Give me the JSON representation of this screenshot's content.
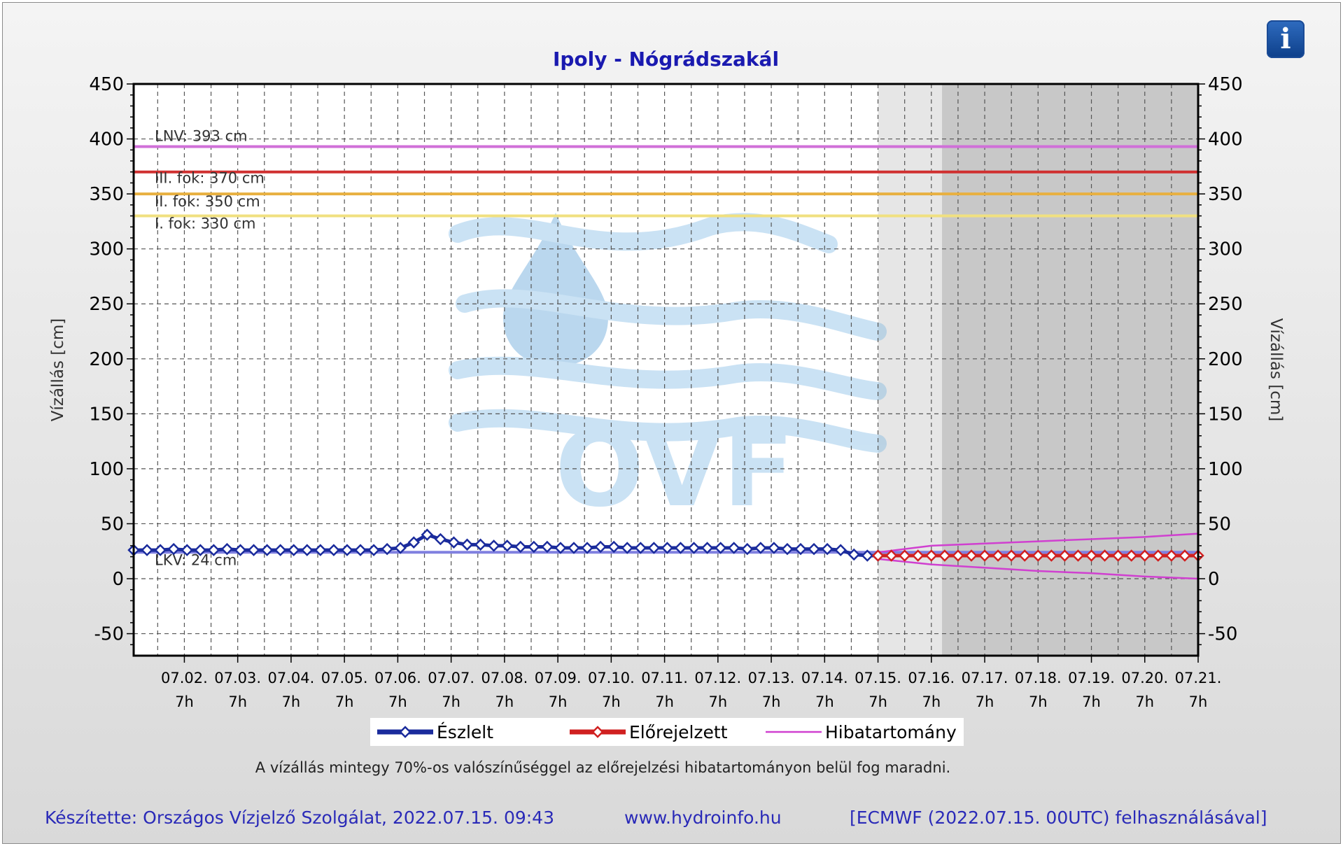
{
  "chart_data": {
    "type": "line",
    "title": "Ipoly - Nógrádszakál",
    "ylabel": "Vízállás [cm]",
    "ylabel_right": "Vízállás [cm]",
    "ylim": [
      -70,
      450
    ],
    "yticks": [
      450,
      400,
      350,
      300,
      250,
      200,
      150,
      100,
      50,
      0,
      -50
    ],
    "xlim_days": [
      0.35,
      20.3
    ],
    "x_tick_labels": [
      {
        "date": "07.02.",
        "time": "7h"
      },
      {
        "date": "07.03.",
        "time": "7h"
      },
      {
        "date": "07.04.",
        "time": "7h"
      },
      {
        "date": "07.05.",
        "time": "7h"
      },
      {
        "date": "07.06.",
        "time": "7h"
      },
      {
        "date": "07.07.",
        "time": "7h"
      },
      {
        "date": "07.08.",
        "time": "7h"
      },
      {
        "date": "07.09.",
        "time": "7h"
      },
      {
        "date": "07.10.",
        "time": "7h"
      },
      {
        "date": "07.11.",
        "time": "7h"
      },
      {
        "date": "07.12.",
        "time": "7h"
      },
      {
        "date": "07.13.",
        "time": "7h"
      },
      {
        "date": "07.14.",
        "time": "7h"
      },
      {
        "date": "07.15.",
        "time": "7h"
      },
      {
        "date": "07.16.",
        "time": "7h"
      },
      {
        "date": "07.17.",
        "time": "7h"
      },
      {
        "date": "07.18.",
        "time": "7h"
      },
      {
        "date": "07.19.",
        "time": "7h"
      },
      {
        "date": "07.20.",
        "time": "7h"
      },
      {
        "date": "07.21.",
        "time": "7h"
      }
    ],
    "grid": true,
    "shaded_regions": [
      {
        "from_day": 14.3,
        "to_day": 15.5,
        "color": "#e6e6e6"
      },
      {
        "from_day": 15.5,
        "to_day": 20.3,
        "color": "#c8c8c8"
      }
    ],
    "thresholds": [
      {
        "label": "LNV: 393 cm",
        "value": 393,
        "color": "#d070d8"
      },
      {
        "label": "III. fok: 370 cm",
        "value": 370,
        "color": "#d03030"
      },
      {
        "label": "II. fok: 350 cm",
        "value": 350,
        "color": "#e8b040"
      },
      {
        "label": "I. fok: 330 cm",
        "value": 330,
        "color": "#f0e080"
      },
      {
        "label": "LKV: 24 cm",
        "value": 24,
        "color": "#8080e0"
      }
    ],
    "series": [
      {
        "name": "Észlelt",
        "color": "#1a2b9c",
        "points": [
          [
            0.35,
            26
          ],
          [
            0.6,
            26
          ],
          [
            0.85,
            26
          ],
          [
            1.1,
            27
          ],
          [
            1.35,
            26
          ],
          [
            1.6,
            26
          ],
          [
            1.85,
            26
          ],
          [
            2.1,
            27
          ],
          [
            2.35,
            26
          ],
          [
            2.6,
            26
          ],
          [
            2.85,
            26
          ],
          [
            3.1,
            26
          ],
          [
            3.35,
            26
          ],
          [
            3.6,
            26
          ],
          [
            3.85,
            26
          ],
          [
            4.1,
            26
          ],
          [
            4.35,
            26
          ],
          [
            4.6,
            26
          ],
          [
            4.85,
            26
          ],
          [
            5.1,
            27
          ],
          [
            5.35,
            28
          ],
          [
            5.6,
            33
          ],
          [
            5.85,
            40
          ],
          [
            6.1,
            36
          ],
          [
            6.35,
            33
          ],
          [
            6.6,
            31
          ],
          [
            6.85,
            31
          ],
          [
            7.1,
            30
          ],
          [
            7.35,
            30
          ],
          [
            7.6,
            29
          ],
          [
            7.85,
            29
          ],
          [
            8.1,
            29
          ],
          [
            8.35,
            28
          ],
          [
            8.6,
            28
          ],
          [
            8.85,
            28
          ],
          [
            9.1,
            29
          ],
          [
            9.35,
            29
          ],
          [
            9.6,
            28
          ],
          [
            9.85,
            28
          ],
          [
            10.1,
            28
          ],
          [
            10.35,
            28
          ],
          [
            10.6,
            28
          ],
          [
            10.85,
            28
          ],
          [
            11.1,
            28
          ],
          [
            11.35,
            28
          ],
          [
            11.6,
            28
          ],
          [
            11.85,
            27
          ],
          [
            12.1,
            28
          ],
          [
            12.35,
            28
          ],
          [
            12.6,
            27
          ],
          [
            12.85,
            27
          ],
          [
            13.1,
            27
          ],
          [
            13.35,
            27
          ],
          [
            13.6,
            26
          ],
          [
            13.85,
            22
          ],
          [
            14.1,
            21
          ],
          [
            14.3,
            21
          ]
        ]
      },
      {
        "name": "Előrejelzett",
        "color": "#d02020",
        "points": [
          [
            14.3,
            21
          ],
          [
            14.55,
            21
          ],
          [
            14.8,
            21
          ],
          [
            15.05,
            21
          ],
          [
            15.3,
            21
          ],
          [
            15.55,
            21
          ],
          [
            15.8,
            21
          ],
          [
            16.05,
            21
          ],
          [
            16.3,
            21
          ],
          [
            16.55,
            21
          ],
          [
            16.8,
            21
          ],
          [
            17.05,
            21
          ],
          [
            17.3,
            21
          ],
          [
            17.55,
            21
          ],
          [
            17.8,
            21
          ],
          [
            18.05,
            21
          ],
          [
            18.3,
            21
          ],
          [
            18.55,
            21
          ],
          [
            18.8,
            21
          ],
          [
            19.05,
            21
          ],
          [
            19.3,
            21
          ],
          [
            19.55,
            21
          ],
          [
            19.8,
            21
          ],
          [
            20.05,
            21
          ],
          [
            20.3,
            21
          ]
        ]
      },
      {
        "name": "Hibatartomány",
        "color": "#d040d0",
        "upper": [
          [
            14.3,
            24
          ],
          [
            15.3,
            30
          ],
          [
            16.3,
            32
          ],
          [
            17.3,
            34
          ],
          [
            18.3,
            36
          ],
          [
            19.3,
            38
          ],
          [
            20.3,
            41
          ]
        ],
        "lower": [
          [
            14.3,
            18
          ],
          [
            15.3,
            13
          ],
          [
            16.3,
            10
          ],
          [
            17.3,
            7
          ],
          [
            18.3,
            5
          ],
          [
            19.3,
            2
          ],
          [
            20.3,
            0
          ]
        ]
      }
    ],
    "legend": {
      "position": "bottom",
      "items": [
        "Észlelt",
        "Előrejelzett",
        "Hibatartomány"
      ]
    },
    "note": "A vízállás mintegy 70%-os valószínűséggel az előrejelzési hibatartományon belül fog maradni.",
    "watermark": "OVF"
  },
  "footer": {
    "left": "Készítette: Országos Vízjelző Szolgálat, 2022.07.15. 09:43",
    "center": "www.hydroinfo.hu",
    "right": "[ECMWF (2022.07.15. 00UTC) felhasználásával]"
  },
  "info_button": {
    "label": "i",
    "icon": "info-icon"
  }
}
